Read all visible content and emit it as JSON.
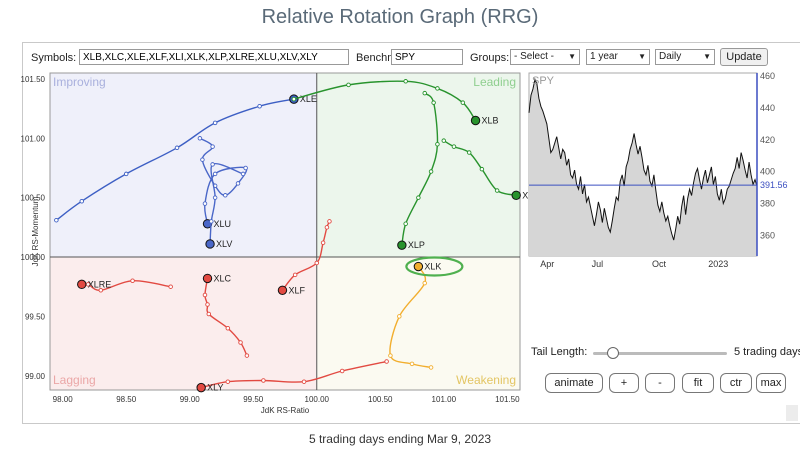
{
  "title": "Relative Rotation Graph (RRG)",
  "controls": {
    "symbols_label": "Symbols:",
    "symbols_value": "XLB,XLC,XLE,XLF,XLI,XLK,XLP,XLRE,XLU,XLV,XLY",
    "benchmark_label": "Benchmark:",
    "benchmark_value": "SPY",
    "groups_label": "Groups:",
    "groups_value": "- Select -",
    "period_value": "1 year",
    "frequency_value": "Daily",
    "update_label": "Update"
  },
  "tail": {
    "label": "Tail Length:",
    "value_text": "5 trading days",
    "level_fraction": 0.15
  },
  "buttons": [
    "animate",
    "+",
    "-",
    "fit",
    "ctr",
    "max"
  ],
  "footer": "5 trading days ending Mar 9, 2023",
  "colors": {
    "improving_bg": "#eff0fa",
    "leading_bg": "#ecf6ec",
    "lagging_bg": "#fbeded",
    "weakening_bg": "#fbfaf1",
    "improving_text": "#a9b0dd",
    "leading_text": "#8fcf8f",
    "lagging_text": "#eba7a7",
    "weakening_text": "#e3c563",
    "highlight_ring": "#4fb04f"
  },
  "chart_data": [
    {
      "type": "scatter",
      "xlabel": "JdK RS-Ratio",
      "ylabel": "JdK RS-Momentum",
      "xlim": [
        97.9,
        101.6
      ],
      "ylim": [
        98.88,
        101.55
      ],
      "center": [
        100,
        100
      ],
      "grid": false,
      "xticks": [
        98.0,
        98.5,
        99.0,
        99.5,
        100.0,
        100.5,
        101.0,
        101.5
      ],
      "xtick_labels": [
        "98.00",
        "98.50",
        "99.00",
        "99.50",
        "100.00",
        "100.50",
        "101.00",
        "101.50"
      ],
      "yticks": [
        99.0,
        99.5,
        100.0,
        100.5,
        101.0,
        101.5
      ],
      "ytick_labels": [
        "99.00",
        "99.50",
        "100.00",
        "100.50",
        "101.00",
        "101.50"
      ],
      "quadrants": {
        "top_left": "Improving",
        "top_right": "Leading",
        "bottom_left": "Lagging",
        "bottom_right": "Weakening"
      },
      "highlighted": "XLK",
      "series": [
        {
          "name": "XLE",
          "color": "#3d5fc4",
          "tail": [
            [
              97.95,
              100.31
            ],
            [
              98.15,
              100.47
            ],
            [
              98.5,
              100.7
            ],
            [
              98.9,
              100.92
            ],
            [
              99.2,
              101.13
            ],
            [
              99.55,
              101.27
            ],
            [
              99.82,
              101.33
            ]
          ]
        },
        {
          "name": "XLU",
          "color": "#4a67c8",
          "tail": [
            [
              99.08,
              101.0
            ],
            [
              99.18,
              100.93
            ],
            [
              99.1,
              100.82
            ],
            [
              99.2,
              100.6
            ],
            [
              99.28,
              100.52
            ],
            [
              99.38,
              100.62
            ],
            [
              99.44,
              100.75
            ],
            [
              99.2,
              100.7
            ],
            [
              99.12,
              100.45
            ],
            [
              99.14,
              100.28
            ]
          ]
        },
        {
          "name": "XLV",
          "color": "#4a67c8",
          "tail": [
            [
              99.42,
              100.7
            ],
            [
              99.18,
              100.78
            ],
            [
              99.2,
              100.5
            ],
            [
              99.17,
              100.3
            ],
            [
              99.16,
              100.11
            ]
          ]
        },
        {
          "name": "XLB",
          "color": "#28932d",
          "tail": [
            [
              99.82,
              101.33
            ],
            [
              100.25,
              101.45
            ],
            [
              100.7,
              101.48
            ],
            [
              100.95,
              101.42
            ],
            [
              101.15,
              101.3
            ],
            [
              101.25,
              101.15
            ]
          ]
        },
        {
          "name": "XLI",
          "color": "#28932d",
          "tail": [
            [
              101.0,
              100.98
            ],
            [
              101.08,
              100.93
            ],
            [
              101.2,
              100.88
            ],
            [
              101.3,
              100.74
            ],
            [
              101.42,
              100.56
            ],
            [
              101.57,
              100.52
            ]
          ]
        },
        {
          "name": "XLP",
          "color": "#28932d",
          "tail": [
            [
              100.85,
              101.38
            ],
            [
              100.92,
              101.3
            ],
            [
              100.95,
              100.95
            ],
            [
              100.9,
              100.72
            ],
            [
              100.8,
              100.5
            ],
            [
              100.7,
              100.28
            ],
            [
              100.67,
              100.1
            ]
          ]
        },
        {
          "name": "XLF",
          "color": "#e24a42",
          "tail": [
            [
              100.1,
              100.3
            ],
            [
              100.08,
              100.25
            ],
            [
              100.05,
              100.12
            ],
            [
              100.0,
              99.95
            ],
            [
              99.83,
              99.85
            ],
            [
              99.73,
              99.72
            ]
          ]
        },
        {
          "name": "XLC",
          "color": "#e24a42",
          "tail": [
            [
              99.45,
              99.17
            ],
            [
              99.4,
              99.28
            ],
            [
              99.3,
              99.4
            ],
            [
              99.15,
              99.52
            ],
            [
              99.14,
              99.6
            ],
            [
              99.12,
              99.68
            ],
            [
              99.14,
              99.82
            ]
          ]
        },
        {
          "name": "XLRE",
          "color": "#e24a42",
          "tail": [
            [
              98.85,
              99.75
            ],
            [
              98.55,
              99.8
            ],
            [
              98.3,
              99.72
            ],
            [
              98.2,
              99.77
            ],
            [
              98.15,
              99.77
            ]
          ]
        },
        {
          "name": "XLY",
          "color": "#e24a42",
          "tail": [
            [
              100.55,
              99.12
            ],
            [
              100.2,
              99.04
            ],
            [
              99.9,
              98.95
            ],
            [
              99.58,
              98.96
            ],
            [
              99.3,
              98.95
            ],
            [
              99.09,
              98.9
            ]
          ]
        },
        {
          "name": "XLK",
          "color": "#f2ae2e",
          "tail": [
            [
              100.9,
              99.07
            ],
            [
              100.75,
              99.1
            ],
            [
              100.58,
              99.17
            ],
            [
              100.65,
              99.5
            ],
            [
              100.85,
              99.78
            ],
            [
              100.8,
              99.92
            ]
          ]
        }
      ]
    },
    {
      "type": "line",
      "title": "SPY",
      "xtick_labels": [
        "Apr",
        "Jul",
        "Oct",
        "2023"
      ],
      "ylim": [
        347,
        462
      ],
      "yticks": [
        360,
        380,
        400,
        420,
        440,
        460
      ],
      "last_value": 391.56,
      "last_value_label": "391.56",
      "values": [
        437,
        448,
        452,
        458,
        455,
        446,
        441,
        438,
        434,
        430,
        421,
        412,
        414,
        418,
        422,
        415,
        408,
        414,
        412,
        404,
        408,
        398,
        396,
        401,
        392,
        389,
        397,
        386,
        392,
        381,
        384,
        378,
        372,
        366,
        373,
        381,
        376,
        368,
        377,
        371,
        365,
        362,
        369,
        377,
        384,
        382,
        394,
        398,
        391,
        403,
        407,
        414,
        418,
        424,
        417,
        411,
        416,
        409,
        401,
        398,
        404,
        394,
        391,
        398,
        388,
        379,
        375,
        381,
        374,
        369,
        372,
        366,
        361,
        357,
        364,
        372,
        367,
        378,
        385,
        373,
        383,
        389,
        385,
        393,
        399,
        402,
        395,
        389,
        396,
        401,
        393,
        398,
        403,
        392,
        397,
        386,
        382,
        389,
        380,
        383,
        389,
        391,
        395,
        399,
        402,
        409,
        402,
        412,
        407,
        401,
        396,
        406,
        398,
        392,
        395,
        391
      ]
    }
  ]
}
